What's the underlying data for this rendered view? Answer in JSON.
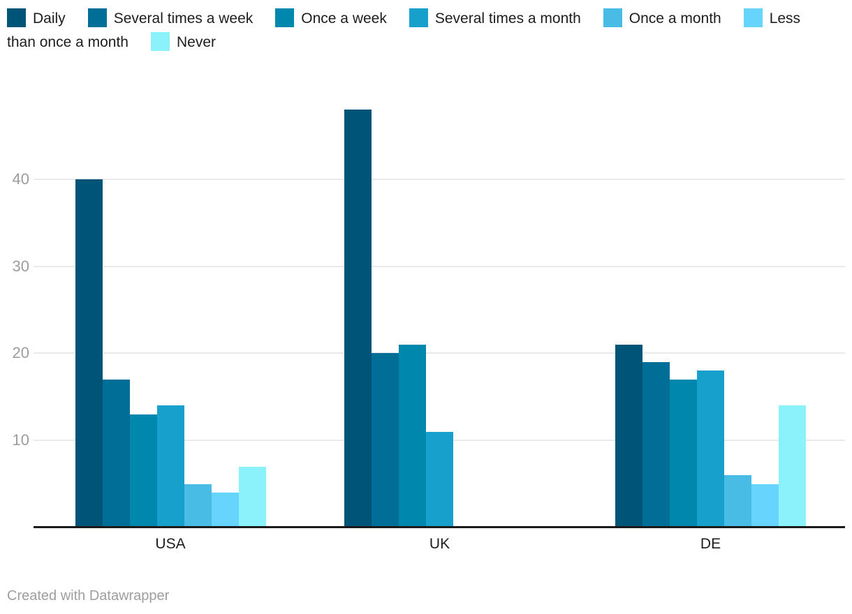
{
  "chart_data": {
    "type": "bar",
    "title": "",
    "categories": [
      "USA",
      "UK",
      "DE"
    ],
    "series": [
      {
        "name": "Daily",
        "color": "#005477",
        "values": [
          40,
          48,
          21
        ]
      },
      {
        "name": "Several times a week",
        "color": "#006e96",
        "values": [
          17,
          20,
          19
        ]
      },
      {
        "name": "Once a week",
        "color": "#0087ad",
        "values": [
          13,
          21,
          17
        ]
      },
      {
        "name": "Several times a month",
        "color": "#18a0cc",
        "values": [
          14,
          11,
          18
        ]
      },
      {
        "name": "Once a month",
        "color": "#49bce6",
        "values": [
          5,
          0,
          6
        ]
      },
      {
        "name": "Less than once a month",
        "color": "#66d4fc",
        "values": [
          4,
          0,
          5
        ]
      },
      {
        "name": "Never",
        "color": "#8bf2fb",
        "values": [
          7,
          0,
          14
        ]
      }
    ],
    "yticks": [
      10,
      20,
      30,
      40
    ],
    "ylim": [
      0,
      48
    ],
    "grid": true,
    "legend_position": "top",
    "xlabel": "",
    "ylabel": ""
  },
  "footer": {
    "text": "Created with Datawrapper"
  },
  "colors": {
    "background": "#ffffff",
    "gridline": "#e9e9e9",
    "baseline": "#1a1a1a",
    "axis_tick_label": "#9d9d9d",
    "category_label": "#1d1d1d",
    "legend_label": "#1d1d1d",
    "footer_text": "#9e9e9e"
  }
}
